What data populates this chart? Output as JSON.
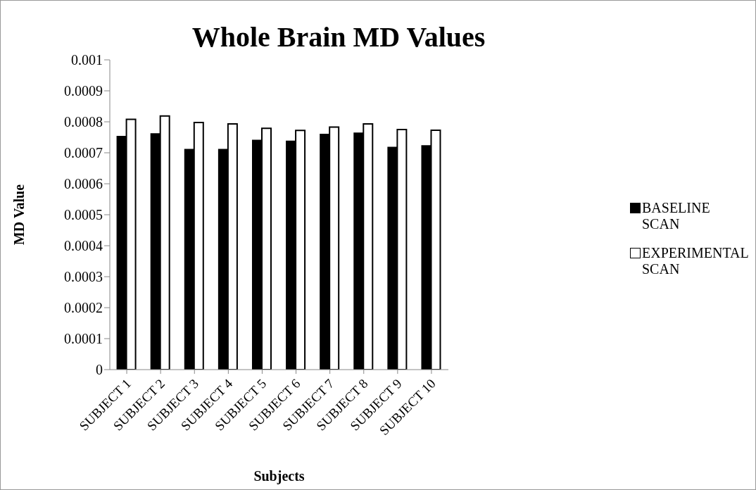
{
  "chart_data": {
    "type": "bar",
    "title": "Whole Brain MD Values",
    "xlabel": "Subjects",
    "ylabel": "MD Value",
    "categories": [
      "SUBJECT 1",
      "SUBJECT 2",
      "SUBJECT 3",
      "SUBJECT 4",
      "SUBJECT 5",
      "SUBJECT 6",
      "SUBJECT 7",
      "SUBJECT 8",
      "SUBJECT 9",
      "SUBJECT 10"
    ],
    "series": [
      {
        "name": "BASELINE SCAN",
        "color": "#000000",
        "values": [
          0.000752,
          0.000761,
          0.00071,
          0.00071,
          0.00074,
          0.000737,
          0.000759,
          0.000763,
          0.000717,
          0.000722
        ]
      },
      {
        "name": "EXPERIMENTAL SCAN",
        "color": "#ffffff",
        "values": [
          0.000808,
          0.000819,
          0.000798,
          0.000793,
          0.000779,
          0.000772,
          0.000783,
          0.000793,
          0.000775,
          0.000773
        ]
      }
    ],
    "ylim": [
      0,
      0.001
    ],
    "yticks": [
      0,
      0.0001,
      0.0002,
      0.0003,
      0.0004,
      0.0005,
      0.0006,
      0.0007,
      0.0008,
      0.0009,
      0.001
    ],
    "grid": false,
    "legend": "right"
  }
}
